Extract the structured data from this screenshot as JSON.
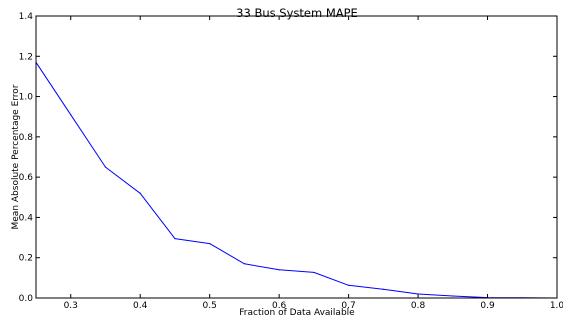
{
  "chart_data": {
    "type": "line",
    "title": "33 Bus System MAPE",
    "xlabel": "Fraction of Data Available",
    "ylabel": "Mean Absolute Percentage Error",
    "xlim": [
      0.25,
      1.0
    ],
    "ylim": [
      0.0,
      1.4
    ],
    "x_ticks": [
      "0.3",
      "0.4",
      "0.5",
      "0.6",
      "0.7",
      "0.8",
      "0.9",
      "1.0"
    ],
    "y_ticks": [
      "0.0",
      "0.2",
      "0.4",
      "0.6",
      "0.8",
      "1.0",
      "1.2",
      "1.4"
    ],
    "grid": false,
    "series": [
      {
        "color": "#0000ff",
        "x": [
          0.25,
          0.3,
          0.35,
          0.4,
          0.45,
          0.5,
          0.55,
          0.6,
          0.65,
          0.7,
          0.75,
          0.8,
          0.85,
          0.9,
          0.95,
          1.0
        ],
        "y": [
          1.17,
          0.91,
          0.65,
          0.52,
          0.295,
          0.27,
          0.17,
          0.14,
          0.127,
          0.063,
          0.043,
          0.02,
          0.01,
          0.002,
          0.001,
          0.0
        ]
      }
    ]
  }
}
